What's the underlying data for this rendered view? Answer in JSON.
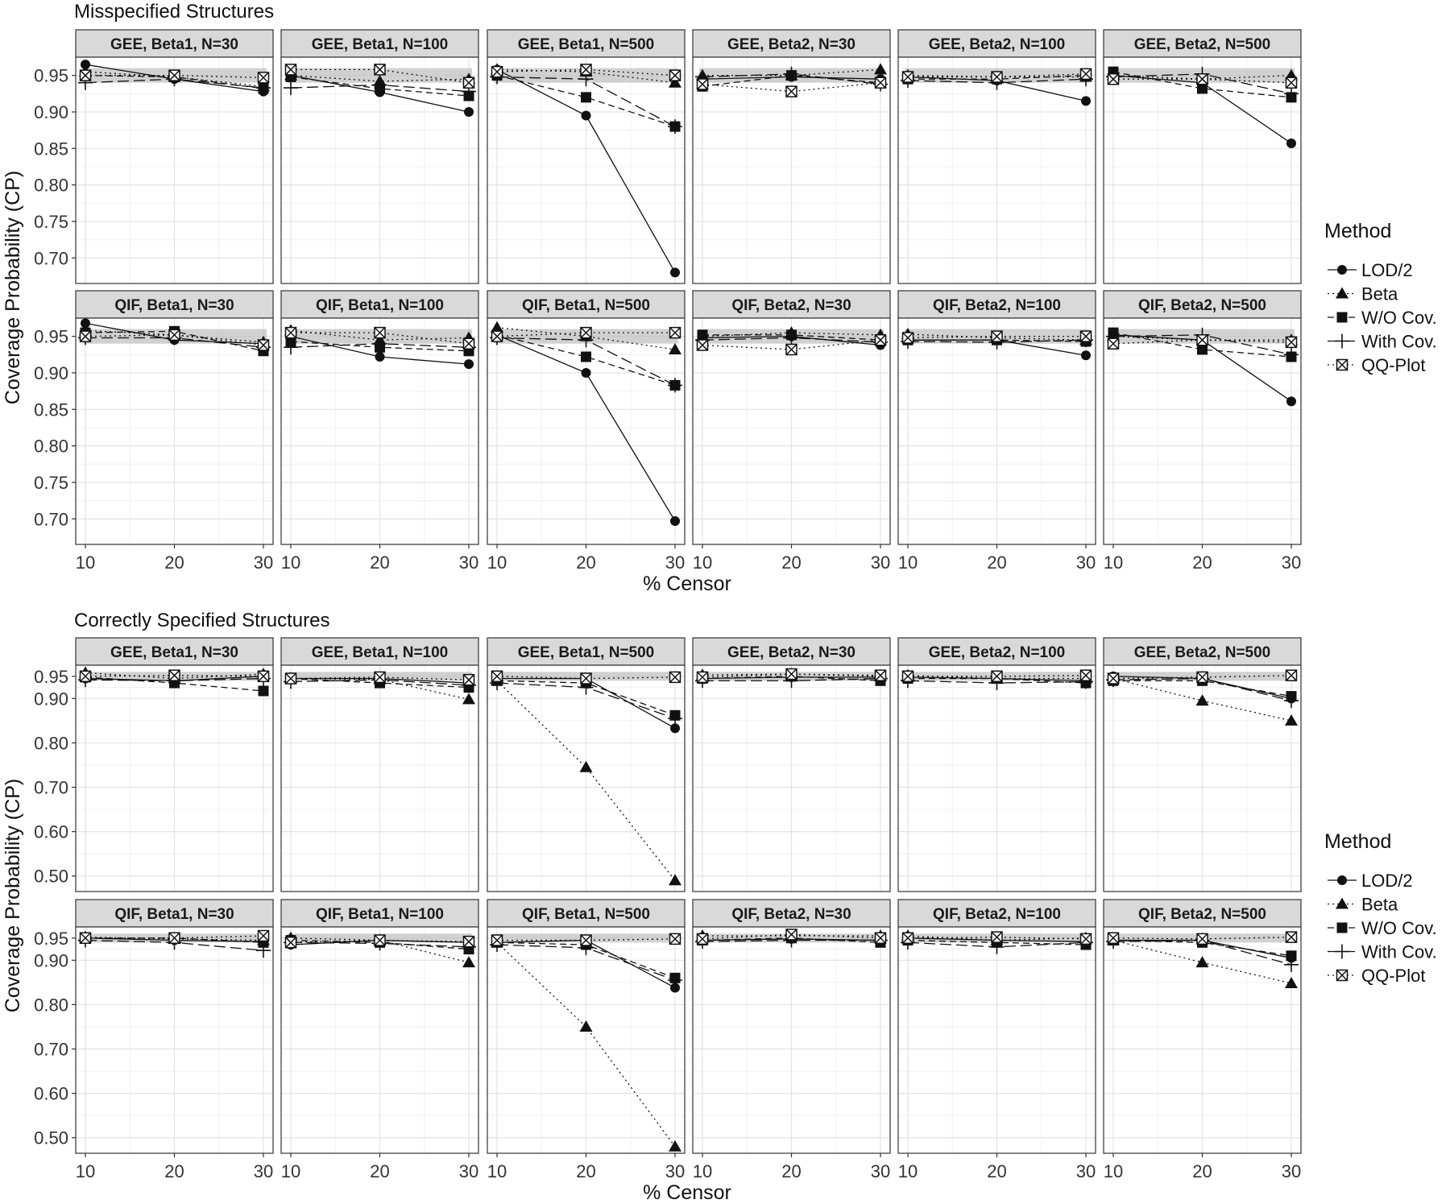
{
  "chart_data": {
    "type": "line",
    "panel_rows": [
      "GEE",
      "QIF"
    ],
    "panel_cols": [
      "Beta1, N=30",
      "Beta1, N=100",
      "Beta1, N=500",
      "Beta2, N=30",
      "Beta2, N=100",
      "Beta2, N=500"
    ],
    "x": [
      10,
      20,
      30
    ],
    "xticks": [
      "10",
      "20",
      "30"
    ],
    "xlabel": "% Censor",
    "ylabel": "Coverage Probability (CP)",
    "nominal_band": [
      0.94,
      0.96
    ],
    "grid": true,
    "legend_position": "right",
    "legend_title": "Method",
    "methods": [
      {
        "name": "LOD/2",
        "marker": "circle",
        "linestyle": "solid"
      },
      {
        "name": "Beta",
        "marker": "triangle",
        "linestyle": "dotted"
      },
      {
        "name": "W/O Cov.",
        "marker": "square",
        "linestyle": "dashed"
      },
      {
        "name": "With Cov.",
        "marker": "plus",
        "linestyle": "longdash"
      },
      {
        "name": "QQ-Plot",
        "marker": "boxed-x",
        "linestyle": "dotted"
      }
    ],
    "figures": [
      {
        "title": "Misspecified Structures",
        "ylim": [
          0.665,
          0.975
        ],
        "yticks": [
          0.7,
          0.75,
          0.8,
          0.85,
          0.9,
          0.95
        ],
        "ytick_labels": [
          "0.70",
          "0.75",
          "0.80",
          "0.85",
          "0.90",
          "0.95"
        ],
        "panels": [
          {
            "strip": "GEE, Beta1, N=30",
            "series": {
              "LOD/2": [
                0.965,
                0.945,
                0.928
              ],
              "Beta": [
                0.955,
                0.948,
                0.935
              ],
              "W/O Cov.": [
                0.95,
                0.948,
                0.932
              ],
              "With Cov.": [
                0.94,
                0.945,
                0.933
              ],
              "QQ-Plot": [
                0.95,
                0.95,
                0.947
              ]
            }
          },
          {
            "strip": "GEE, Beta1, N=100",
            "series": {
              "LOD/2": [
                0.95,
                0.927,
                0.9
              ],
              "Beta": [
                0.95,
                0.942,
                0.945
              ],
              "W/O Cov.": [
                0.948,
                0.932,
                0.922
              ],
              "With Cov.": [
                0.933,
                0.937,
                0.928
              ],
              "QQ-Plot": [
                0.958,
                0.958,
                0.94
              ]
            }
          },
          {
            "strip": "GEE, Beta1, N=500",
            "series": {
              "LOD/2": [
                0.958,
                0.895,
                0.68
              ],
              "Beta": [
                0.958,
                0.955,
                0.94
              ],
              "W/O Cov.": [
                0.95,
                0.92,
                0.88
              ],
              "With Cov.": [
                0.948,
                0.945,
                0.88
              ],
              "QQ-Plot": [
                0.955,
                0.958,
                0.95
              ]
            }
          },
          {
            "strip": "GEE, Beta2, N=30",
            "series": {
              "LOD/2": [
                0.945,
                0.948,
                0.945
              ],
              "Beta": [
                0.95,
                0.95,
                0.958
              ],
              "W/O Cov.": [
                0.935,
                0.95,
                0.94
              ],
              "With Cov.": [
                0.948,
                0.952,
                0.938
              ],
              "QQ-Plot": [
                0.938,
                0.928,
                0.94
              ]
            }
          },
          {
            "strip": "GEE, Beta2, N=100",
            "series": {
              "LOD/2": [
                0.948,
                0.943,
                0.915
              ],
              "Beta": [
                0.95,
                0.948,
                0.948
              ],
              "W/O Cov.": [
                0.945,
                0.945,
                0.95
              ],
              "With Cov.": [
                0.943,
                0.94,
                0.945
              ],
              "QQ-Plot": [
                0.948,
                0.948,
                0.952
              ]
            }
          },
          {
            "strip": "GEE, Beta2, N=500",
            "series": {
              "LOD/2": [
                0.95,
                0.94,
                0.857
              ],
              "Beta": [
                0.95,
                0.945,
                0.95
              ],
              "W/O Cov.": [
                0.955,
                0.932,
                0.92
              ],
              "With Cov.": [
                0.948,
                0.952,
                0.925
              ],
              "QQ-Plot": [
                0.945,
                0.945,
                0.94
              ]
            }
          },
          {
            "strip": "QIF, Beta1, N=30",
            "series": {
              "LOD/2": [
                0.968,
                0.945,
                0.94
              ],
              "Beta": [
                0.958,
                0.952,
                0.942
              ],
              "W/O Cov.": [
                0.955,
                0.957,
                0.93
              ],
              "With Cov.": [
                0.948,
                0.948,
                0.935
              ],
              "QQ-Plot": [
                0.95,
                0.952,
                0.938
              ]
            }
          },
          {
            "strip": "QIF, Beta1, N=100",
            "series": {
              "LOD/2": [
                0.95,
                0.922,
                0.912
              ],
              "Beta": [
                0.958,
                0.945,
                0.948
              ],
              "W/O Cov.": [
                0.943,
                0.935,
                0.93
              ],
              "With Cov.": [
                0.935,
                0.94,
                0.935
              ],
              "QQ-Plot": [
                0.955,
                0.955,
                0.94
              ]
            }
          },
          {
            "strip": "QIF, Beta1, N=500",
            "series": {
              "LOD/2": [
                0.952,
                0.9,
                0.697
              ],
              "Beta": [
                0.962,
                0.95,
                0.932
              ],
              "W/O Cov.": [
                0.952,
                0.922,
                0.883
              ],
              "With Cov.": [
                0.948,
                0.945,
                0.883
              ],
              "QQ-Plot": [
                0.95,
                0.955,
                0.955
              ]
            }
          },
          {
            "strip": "QIF, Beta2, N=30",
            "series": {
              "LOD/2": [
                0.948,
                0.95,
                0.938
              ],
              "Beta": [
                0.95,
                0.955,
                0.952
              ],
              "W/O Cov.": [
                0.952,
                0.952,
                0.945
              ],
              "With Cov.": [
                0.945,
                0.948,
                0.942
              ],
              "QQ-Plot": [
                0.938,
                0.932,
                0.945
              ]
            }
          },
          {
            "strip": "QIF, Beta2, N=100",
            "series": {
              "LOD/2": [
                0.945,
                0.945,
                0.924
              ],
              "Beta": [
                0.953,
                0.948,
                0.945
              ],
              "W/O Cov.": [
                0.945,
                0.945,
                0.943
              ],
              "With Cov.": [
                0.943,
                0.942,
                0.945
              ],
              "QQ-Plot": [
                0.948,
                0.95,
                0.95
              ]
            }
          },
          {
            "strip": "QIF, Beta2, N=500",
            "series": {
              "LOD/2": [
                0.952,
                0.945,
                0.861
              ],
              "Beta": [
                0.95,
                0.945,
                0.945
              ],
              "W/O Cov.": [
                0.955,
                0.932,
                0.922
              ],
              "With Cov.": [
                0.95,
                0.952,
                0.925
              ],
              "QQ-Plot": [
                0.94,
                0.945,
                0.942
              ]
            }
          }
        ]
      },
      {
        "title": "Correctly Specified Structures",
        "ylim": [
          0.465,
          0.975
        ],
        "yticks": [
          0.5,
          0.6,
          0.7,
          0.8,
          0.9,
          0.95
        ],
        "ytick_labels": [
          "0.50",
          "0.60",
          "0.70",
          "0.80",
          "0.90",
          "0.95"
        ],
        "panels": [
          {
            "strip": "GEE, Beta1, N=30",
            "series": {
              "LOD/2": [
                0.945,
                0.94,
                0.95
              ],
              "Beta": [
                0.958,
                0.945,
                0.955
              ],
              "W/O Cov.": [
                0.948,
                0.935,
                0.917
              ],
              "With Cov.": [
                0.942,
                0.94,
                0.945
              ],
              "QQ-Plot": [
                0.95,
                0.952,
                0.95
              ]
            }
          },
          {
            "strip": "GEE, Beta1, N=100",
            "series": {
              "LOD/2": [
                0.945,
                0.945,
                0.935
              ],
              "Beta": [
                0.945,
                0.943,
                0.898
              ],
              "W/O Cov.": [
                0.945,
                0.935,
                0.925
              ],
              "With Cov.": [
                0.938,
                0.942,
                0.93
              ],
              "QQ-Plot": [
                0.945,
                0.948,
                0.942
              ]
            }
          },
          {
            "strip": "GEE, Beta1, N=500",
            "series": {
              "LOD/2": [
                0.945,
                0.945,
                0.833
              ],
              "Beta": [
                0.94,
                0.745,
                0.49
              ],
              "W/O Cov.": [
                0.94,
                0.935,
                0.862
              ],
              "With Cov.": [
                0.935,
                0.925,
                0.855
              ],
              "QQ-Plot": [
                0.95,
                0.945,
                0.948
              ]
            }
          },
          {
            "strip": "GEE, Beta2, N=30",
            "series": {
              "LOD/2": [
                0.945,
                0.948,
                0.948
              ],
              "Beta": [
                0.953,
                0.955,
                0.95
              ],
              "W/O Cov.": [
                0.945,
                0.95,
                0.94
              ],
              "With Cov.": [
                0.94,
                0.94,
                0.945
              ],
              "QQ-Plot": [
                0.948,
                0.955,
                0.952
              ]
            }
          },
          {
            "strip": "GEE, Beta2, N=100",
            "series": {
              "LOD/2": [
                0.948,
                0.945,
                0.94
              ],
              "Beta": [
                0.952,
                0.945,
                0.945
              ],
              "W/O Cov.": [
                0.945,
                0.945,
                0.935
              ],
              "With Cov.": [
                0.94,
                0.935,
                0.938
              ],
              "QQ-Plot": [
                0.95,
                0.95,
                0.952
              ]
            }
          },
          {
            "strip": "GEE, Beta2, N=500",
            "series": {
              "LOD/2": [
                0.95,
                0.945,
                0.9
              ],
              "Beta": [
                0.945,
                0.895,
                0.85
              ],
              "W/O Cov.": [
                0.94,
                0.94,
                0.905
              ],
              "With Cov.": [
                0.942,
                0.945,
                0.895
              ],
              "QQ-Plot": [
                0.945,
                0.948,
                0.952
              ]
            }
          },
          {
            "strip": "QIF, Beta1, N=30",
            "series": {
              "LOD/2": [
                0.95,
                0.945,
                0.942
              ],
              "Beta": [
                0.952,
                0.948,
                0.945
              ],
              "W/O Cov.": [
                0.95,
                0.95,
                0.94
              ],
              "With Cov.": [
                0.945,
                0.94,
                0.922
              ],
              "QQ-Plot": [
                0.95,
                0.95,
                0.955
              ]
            }
          },
          {
            "strip": "QIF, Beta1, N=100",
            "series": {
              "LOD/2": [
                0.935,
                0.945,
                0.94
              ],
              "Beta": [
                0.95,
                0.945,
                0.895
              ],
              "W/O Cov.": [
                0.945,
                0.94,
                0.925
              ],
              "With Cov.": [
                0.94,
                0.938,
                0.93
              ],
              "QQ-Plot": [
                0.94,
                0.945,
                0.942
              ]
            }
          },
          {
            "strip": "QIF, Beta1, N=500",
            "series": {
              "LOD/2": [
                0.94,
                0.945,
                0.838
              ],
              "Beta": [
                0.94,
                0.75,
                0.48
              ],
              "W/O Cov.": [
                0.94,
                0.935,
                0.86
              ],
              "With Cov.": [
                0.935,
                0.928,
                0.855
              ],
              "QQ-Plot": [
                0.945,
                0.945,
                0.948
              ]
            }
          },
          {
            "strip": "QIF, Beta2, N=30",
            "series": {
              "LOD/2": [
                0.945,
                0.948,
                0.945
              ],
              "Beta": [
                0.955,
                0.955,
                0.955
              ],
              "W/O Cov.": [
                0.945,
                0.95,
                0.94
              ],
              "With Cov.": [
                0.942,
                0.945,
                0.945
              ],
              "QQ-Plot": [
                0.948,
                0.958,
                0.95
              ]
            }
          },
          {
            "strip": "QIF, Beta2, N=100",
            "series": {
              "LOD/2": [
                0.95,
                0.945,
                0.942
              ],
              "Beta": [
                0.955,
                0.945,
                0.95
              ],
              "W/O Cov.": [
                0.945,
                0.94,
                0.935
              ],
              "With Cov.": [
                0.94,
                0.93,
                0.94
              ],
              "QQ-Plot": [
                0.95,
                0.952,
                0.948
              ]
            }
          },
          {
            "strip": "QIF, Beta2, N=500",
            "series": {
              "LOD/2": [
                0.945,
                0.945,
                0.905
              ],
              "Beta": [
                0.945,
                0.895,
                0.848
              ],
              "W/O Cov.": [
                0.945,
                0.94,
                0.91
              ],
              "With Cov.": [
                0.942,
                0.945,
                0.89
              ],
              "QQ-Plot": [
                0.95,
                0.948,
                0.952
              ]
            }
          }
        ]
      }
    ]
  }
}
